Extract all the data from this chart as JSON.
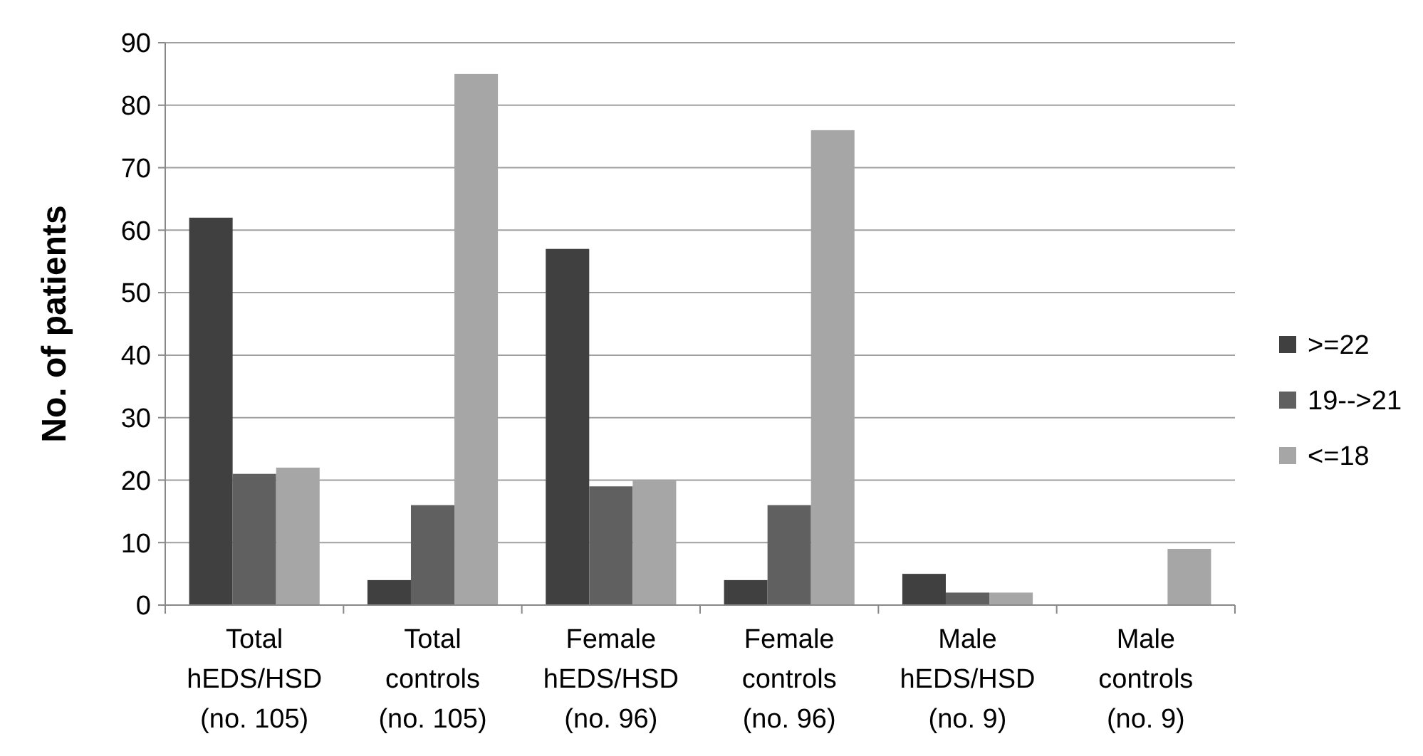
{
  "chart_data": {
    "type": "bar",
    "ylabel": "No. of patients",
    "categories": [
      "Total\nhEDS/HSD\n(no. 105)",
      "Total\ncontrols\n(no. 105)",
      "Female\nhEDS/HSD\n(no. 96)",
      "Female\ncontrols\n(no. 96)",
      "Male\nhEDS/HSD\n(no. 9)",
      "Male\ncontrols\n(no. 9)"
    ],
    "series": [
      {
        "name": ">=22",
        "color": "#404040",
        "values": [
          62,
          4,
          57,
          4,
          5,
          0
        ]
      },
      {
        "name": "19-->21",
        "color": "#606060",
        "values": [
          21,
          16,
          19,
          16,
          2,
          0
        ]
      },
      {
        "name": "<=18",
        "color": "#a6a6a6",
        "values": [
          22,
          85,
          20,
          76,
          2,
          9
        ]
      }
    ],
    "ylim": [
      0,
      90
    ],
    "yticks": [
      0,
      10,
      20,
      30,
      40,
      50,
      60,
      70,
      80,
      90
    ],
    "grid": "y",
    "legend": "right"
  }
}
